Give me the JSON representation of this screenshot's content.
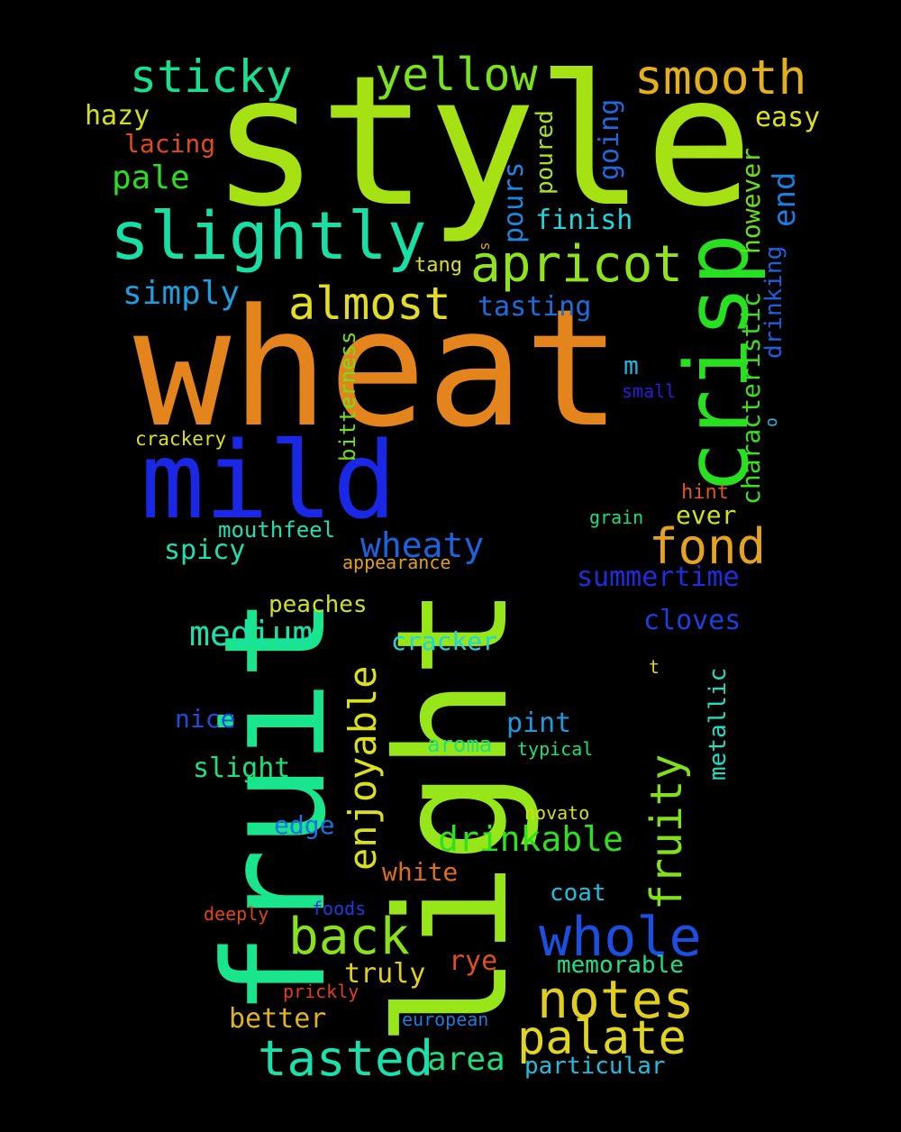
{
  "words": [
    {
      "text": "style",
      "color": "#a6e114"
    },
    {
      "text": "wheat",
      "color": "#e3841c"
    },
    {
      "text": "light",
      "color": "#97e61a"
    },
    {
      "text": "fruit",
      "color": "#19e68c"
    },
    {
      "text": "mild",
      "color": "#1a28e6"
    },
    {
      "text": "crisp",
      "color": "#27e01f"
    },
    {
      "text": "slightly",
      "color": "#19dfa5"
    },
    {
      "text": "apricot",
      "color": "#8fe31c"
    },
    {
      "text": "almost",
      "color": "#e2dd24"
    },
    {
      "text": "sticky",
      "color": "#19e08e"
    },
    {
      "text": "yellow",
      "color": "#79e21a"
    },
    {
      "text": "smooth",
      "color": "#e3b01c"
    },
    {
      "text": "fond",
      "color": "#e4a21d"
    },
    {
      "text": "whole",
      "color": "#1c4ee0"
    },
    {
      "text": "notes",
      "color": "#e0cd1f"
    },
    {
      "text": "palate",
      "color": "#e0d61d"
    },
    {
      "text": "back",
      "color": "#89e01b"
    },
    {
      "text": "tasted",
      "color": "#1ae0ab"
    },
    {
      "text": "enjoyable",
      "color": "#dbe01c"
    },
    {
      "text": "fruity",
      "color": "#81e01b"
    },
    {
      "text": "drinkable",
      "color": "#2ee01e"
    },
    {
      "text": "medium",
      "color": "#1ae0a9"
    },
    {
      "text": "wheaty",
      "color": "#1c63e0"
    },
    {
      "text": "simply",
      "color": "#1c9ee0"
    },
    {
      "text": "pale",
      "color": "#27e01f"
    },
    {
      "text": "hazy",
      "color": "#d2e01c"
    },
    {
      "text": "lacing",
      "color": "#e04a1c"
    },
    {
      "text": "easy",
      "color": "#dde01c"
    },
    {
      "text": "finish",
      "color": "#1cd8e0"
    },
    {
      "text": "tasting",
      "color": "#1c6ee0"
    },
    {
      "text": "pours",
      "color": "#1c86e0"
    },
    {
      "text": "poured",
      "color": "#a7e01c"
    },
    {
      "text": "going",
      "color": "#1c6ce0"
    },
    {
      "text": "end",
      "color": "#1c7ee0"
    },
    {
      "text": "however",
      "color": "#69e01c"
    },
    {
      "text": "characteristic",
      "color": "#3de01c"
    },
    {
      "text": "drinking",
      "color": "#1c60e0"
    },
    {
      "text": "tang",
      "color": "#d8e01c"
    },
    {
      "text": "m",
      "color": "#1cb6e0"
    },
    {
      "text": "small",
      "color": "#2d1ce0"
    },
    {
      "text": "bitterness",
      "color": "#70e01c"
    },
    {
      "text": "crackery",
      "color": "#dde01c"
    },
    {
      "text": "hint",
      "color": "#e0561c"
    },
    {
      "text": "ever",
      "color": "#d0e01c"
    },
    {
      "text": "grain",
      "color": "#1ce07a"
    },
    {
      "text": "mouthfeel",
      "color": "#1ce0b0"
    },
    {
      "text": "spicy",
      "color": "#1ce0b0"
    },
    {
      "text": "appearance",
      "color": "#e0a21c"
    },
    {
      "text": "summertime",
      "color": "#1c2fe0"
    },
    {
      "text": "peaches",
      "color": "#d0e01c"
    },
    {
      "text": "cloves",
      "color": "#1c40e0"
    },
    {
      "text": "cracker",
      "color": "#1cd6e0"
    },
    {
      "text": "metallic",
      "color": "#1ce0c4"
    },
    {
      "text": "t",
      "color": "#e0d21c"
    },
    {
      "text": "nice",
      "color": "#1c4de0"
    },
    {
      "text": "pint",
      "color": "#1c9be0"
    },
    {
      "text": "aroma",
      "color": "#1ce07f"
    },
    {
      "text": "typical",
      "color": "#1ce076"
    },
    {
      "text": "slight",
      "color": "#1ce07a"
    },
    {
      "text": "novato",
      "color": "#d2e01c"
    },
    {
      "text": "edge",
      "color": "#1c72e0"
    },
    {
      "text": "white",
      "color": "#e06d1c"
    },
    {
      "text": "coat",
      "color": "#1cc0e0"
    },
    {
      "text": "deeply",
      "color": "#e0441c"
    },
    {
      "text": "foods",
      "color": "#1c3be0"
    },
    {
      "text": "rye",
      "color": "#e0501c"
    },
    {
      "text": "memorable",
      "color": "#1ce08a"
    },
    {
      "text": "truly",
      "color": "#e0d01c"
    },
    {
      "text": "prickly",
      "color": "#e0401c"
    },
    {
      "text": "better",
      "color": "#e0b21c"
    },
    {
      "text": "european",
      "color": "#1c7ce0"
    },
    {
      "text": "area",
      "color": "#1ce07f"
    },
    {
      "text": "particular",
      "color": "#1cbfe0"
    },
    {
      "text": "s",
      "color": "#e0a21c"
    },
    {
      "text": "o",
      "color": "#1cbfe0"
    }
  ]
}
